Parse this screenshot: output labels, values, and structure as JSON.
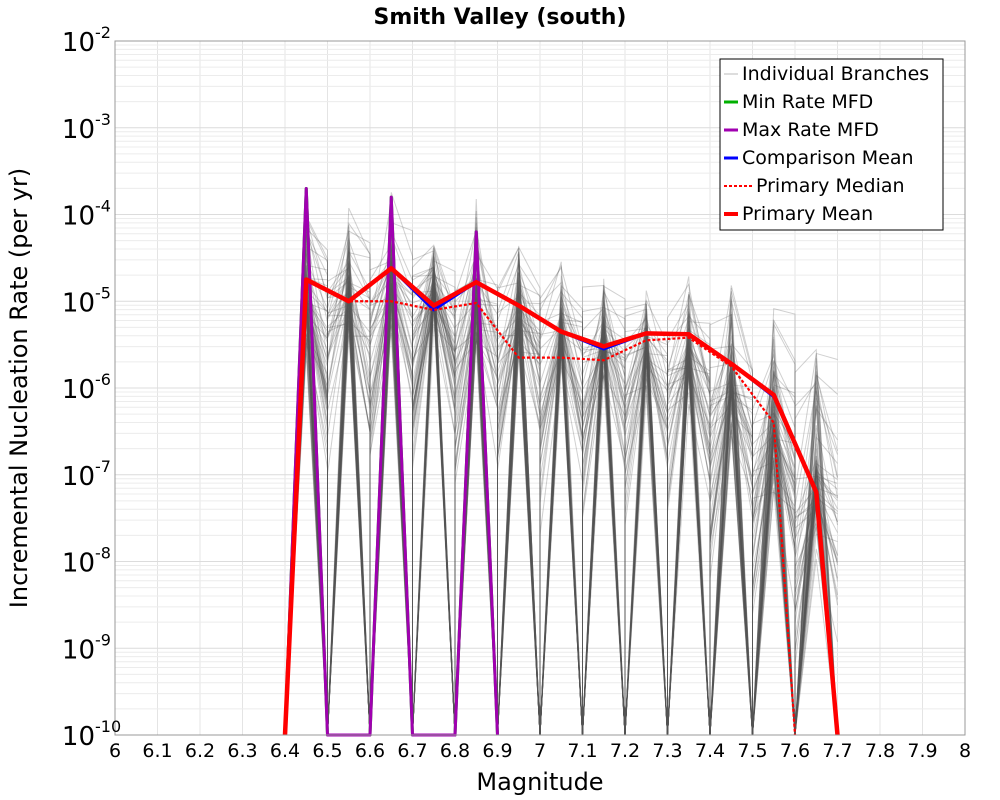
{
  "chart_data": {
    "type": "line",
    "title": "Smith Valley (south)",
    "xlabel": "Magnitude",
    "ylabel": "Incremental Nucleation Rate (per yr)",
    "xlim": [
      6,
      8
    ],
    "ylim_log10": [
      -10,
      -2
    ],
    "yscale": "log",
    "grid": true,
    "legend_position": "top-right",
    "x_ticks": [
      "6",
      "6.1",
      "6.2",
      "6.3",
      "6.4",
      "6.5",
      "6.6",
      "6.7",
      "6.8",
      "6.9",
      "7",
      "7.1",
      "7.2",
      "7.3",
      "7.4",
      "7.5",
      "7.6",
      "7.7",
      "7.8",
      "7.9",
      "8"
    ],
    "y_ticks": [
      {
        "base": "10",
        "exp": "-2",
        "value": -2
      },
      {
        "base": "10",
        "exp": "-3",
        "value": -3
      },
      {
        "base": "10",
        "exp": "-4",
        "value": -4
      },
      {
        "base": "10",
        "exp": "-5",
        "value": -5
      },
      {
        "base": "10",
        "exp": "-6",
        "value": -6
      },
      {
        "base": "10",
        "exp": "-7",
        "value": -7
      },
      {
        "base": "10",
        "exp": "-8",
        "value": -8
      },
      {
        "base": "10",
        "exp": "-9",
        "value": -9
      },
      {
        "base": "10",
        "exp": "-10",
        "value": -10
      }
    ],
    "series": [
      {
        "name": "Individual Branches",
        "color": "#555555",
        "style": "thin",
        "x": [
          6.45,
          6.55,
          6.65,
          6.75,
          6.85,
          6.95,
          7.05,
          7.15,
          7.25,
          7.35,
          7.45,
          7.55,
          7.65
        ],
        "max": [
          -3.7,
          -3.7,
          -3.65,
          -4.0,
          -3.65,
          -4.1,
          -4.5,
          -4.6,
          -4.55,
          -4.55,
          -4.6,
          -4.9,
          -5.4
        ],
        "typical": [
          -4.7,
          -4.6,
          -4.5,
          -4.6,
          -4.7,
          -4.9,
          -5.1,
          -5.2,
          -5.3,
          -5.4,
          -5.7,
          -6.2,
          -6.9
        ]
      },
      {
        "name": "Min Rate MFD",
        "color": "#00b000",
        "style": "solid",
        "x": [
          6.4,
          6.45,
          6.5,
          6.6,
          6.65,
          6.7,
          6.8,
          6.85,
          6.9
        ],
        "y": [
          -10,
          -3.7,
          -10,
          -10,
          -3.8,
          -10,
          -10,
          -4.2,
          -10
        ]
      },
      {
        "name": "Max Rate MFD",
        "color": "#a000b0",
        "style": "solid",
        "x": [
          6.4,
          6.45,
          6.5,
          6.6,
          6.65,
          6.7,
          6.8,
          6.85,
          6.9
        ],
        "y": [
          -10,
          -3.7,
          -10,
          -10,
          -3.8,
          -10,
          -10,
          -4.2,
          -10
        ]
      },
      {
        "name": "Comparison Mean",
        "color": "#0000ff",
        "style": "solid",
        "x": [
          6.4,
          6.45,
          6.55,
          6.65,
          6.75,
          6.85,
          6.95,
          7.05,
          7.15,
          7.25,
          7.35,
          7.45,
          7.55,
          7.65,
          7.7
        ],
        "y": [
          -10,
          -4.75,
          -5.0,
          -4.62,
          -5.1,
          -4.78,
          -5.05,
          -5.35,
          -5.55,
          -5.37,
          -5.38,
          -5.72,
          -6.1,
          -7.2,
          -10
        ]
      },
      {
        "name": "Primary Median",
        "color": "#ff0000",
        "style": "dotted",
        "x": [
          6.4,
          6.45,
          6.55,
          6.65,
          6.75,
          6.85,
          6.95,
          7.05,
          7.15,
          7.25,
          7.35,
          7.45,
          7.55,
          7.6
        ],
        "y": [
          -10,
          -4.75,
          -5.0,
          -5.0,
          -5.1,
          -5.02,
          -5.65,
          -5.65,
          -5.68,
          -5.45,
          -5.42,
          -5.75,
          -6.4,
          -10
        ]
      },
      {
        "name": "Primary Mean",
        "color": "#ff0000",
        "style": "thick",
        "x": [
          6.4,
          6.45,
          6.55,
          6.65,
          6.75,
          6.85,
          6.95,
          7.05,
          7.15,
          7.25,
          7.35,
          7.45,
          7.55,
          7.65,
          7.7
        ],
        "y": [
          -10,
          -4.75,
          -5.0,
          -4.62,
          -5.05,
          -4.78,
          -5.05,
          -5.35,
          -5.52,
          -5.37,
          -5.38,
          -5.72,
          -6.08,
          -7.2,
          -10
        ]
      }
    ]
  }
}
